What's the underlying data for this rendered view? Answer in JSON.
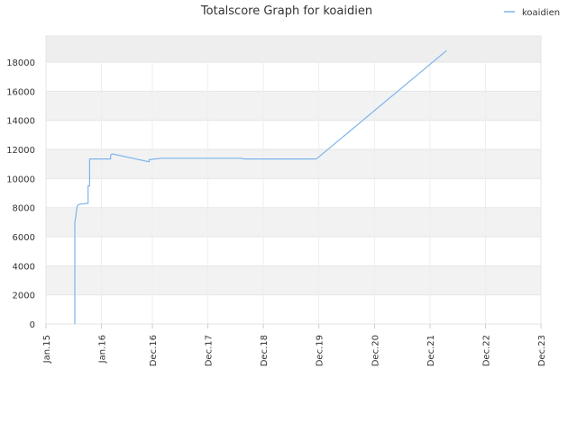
{
  "chart_data": {
    "type": "line",
    "title": "Totalscore Graph for koaidien",
    "xlabel": "",
    "ylabel": "",
    "ylim": [
      0,
      19800
    ],
    "yticks": [
      0,
      2000,
      4000,
      6000,
      8000,
      10000,
      12000,
      14000,
      16000,
      18000
    ],
    "ytick_labels": [
      "0",
      "2000",
      "4000",
      "6000",
      "8000",
      "10000",
      "12000",
      "14000",
      "16000",
      "18000"
    ],
    "xlim": [
      "2015-01-01",
      "2023-12-01"
    ],
    "xticks": [
      "2015-01-01",
      "2016-01-01",
      "2016-12-01",
      "2017-12-01",
      "2018-12-01",
      "2019-12-01",
      "2020-12-01",
      "2021-12-01",
      "2022-12-01",
      "2023-12-01"
    ],
    "xtick_labels": [
      "Jan.15",
      "Jan.16",
      "Dec.16",
      "Dec.17",
      "Dec.18",
      "Dec.19",
      "Dec.20",
      "Dec.21",
      "Dec.22",
      "Dec.23"
    ],
    "legend": {
      "position": "top-right"
    },
    "grid": true,
    "series": [
      {
        "name": "koaidien",
        "color": "#7cb5ec",
        "points": [
          [
            "2015-07-10",
            0
          ],
          [
            "2015-07-10",
            7000
          ],
          [
            "2015-07-15",
            7300
          ],
          [
            "2015-07-20",
            7700
          ],
          [
            "2015-07-25",
            8100
          ],
          [
            "2015-08-01",
            8200
          ],
          [
            "2015-08-20",
            8250
          ],
          [
            "2015-10-05",
            8300
          ],
          [
            "2015-10-05",
            9500
          ],
          [
            "2015-10-15",
            9500
          ],
          [
            "2015-10-15",
            11350
          ],
          [
            "2016-03-01",
            11350
          ],
          [
            "2016-03-01",
            11600
          ],
          [
            "2016-03-10",
            11700
          ],
          [
            "2016-11-10",
            11150
          ],
          [
            "2016-11-10",
            11300
          ],
          [
            "2017-02-01",
            11400
          ],
          [
            "2018-07-01",
            11400
          ],
          [
            "2018-08-01",
            11350
          ],
          [
            "2019-11-15",
            11350
          ],
          [
            "2022-03-20",
            18800
          ]
        ]
      }
    ]
  }
}
